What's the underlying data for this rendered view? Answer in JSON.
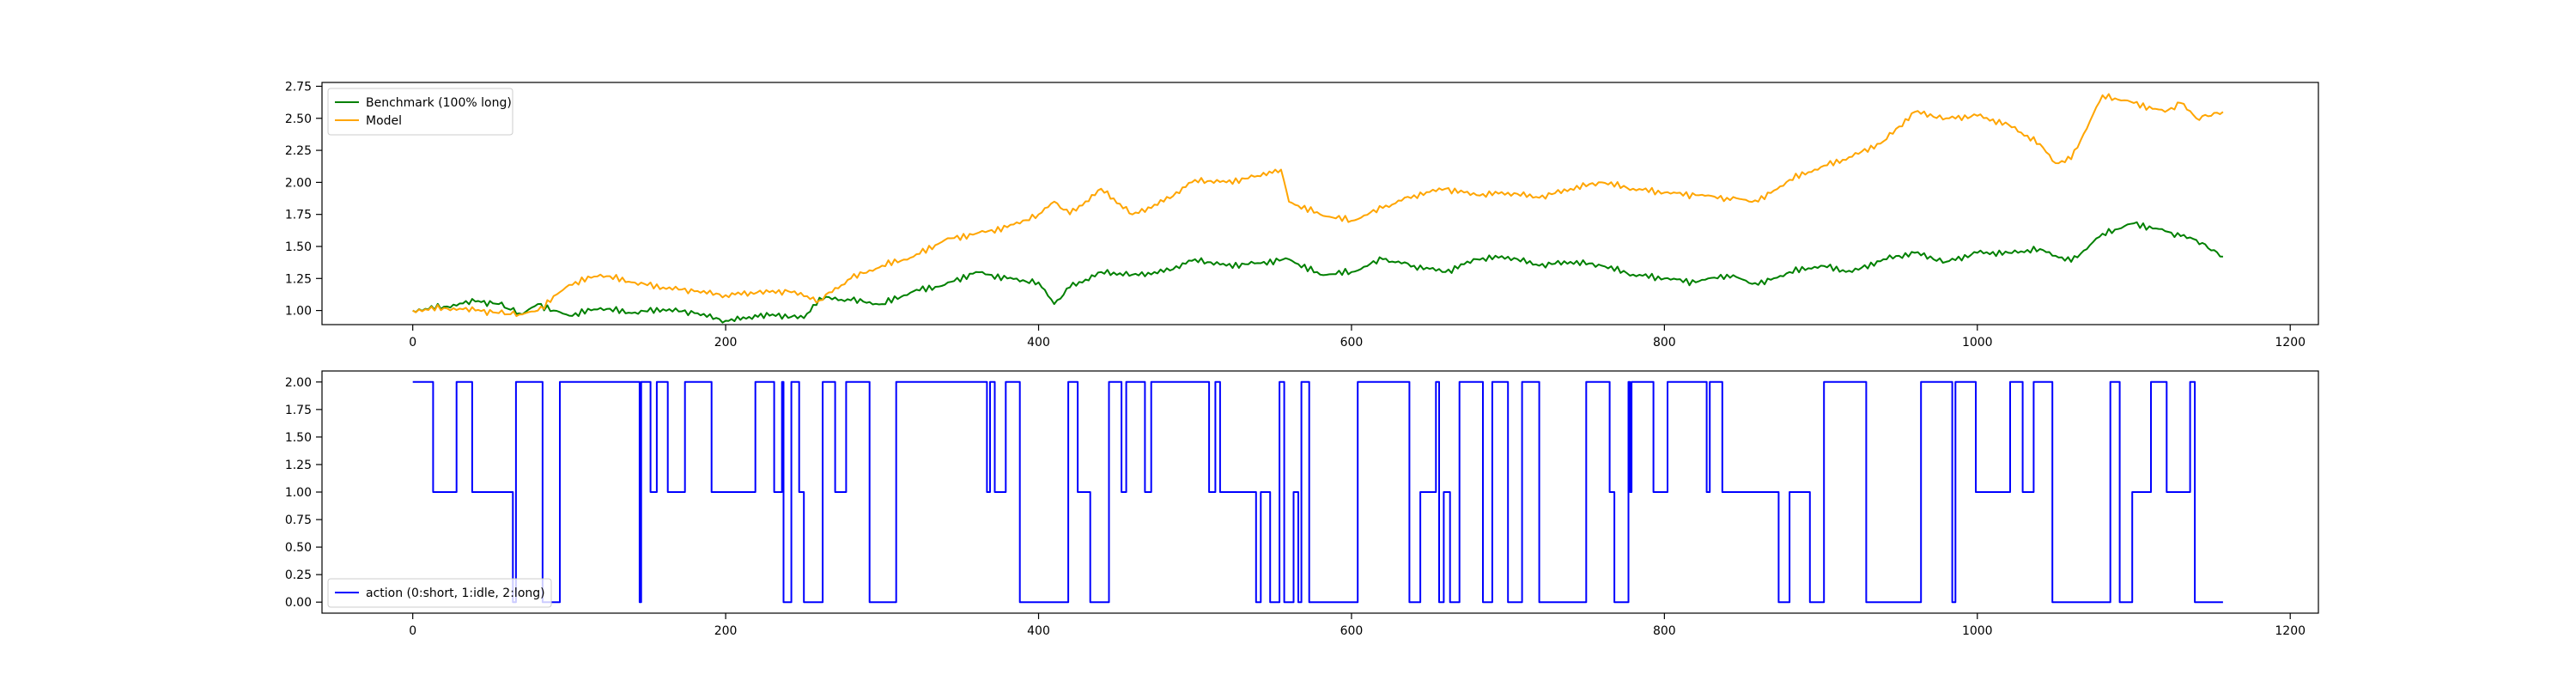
{
  "chart_data": [
    {
      "type": "line",
      "xlim": [
        -58,
        1218
      ],
      "ylim": [
        0.89,
        2.78
      ],
      "xticks": [
        0,
        200,
        400,
        600,
        800,
        1000,
        1200
      ],
      "xtick_labels": [
        "0",
        "200",
        "400",
        "600",
        "800",
        "1000",
        "1200"
      ],
      "yticks": [
        1.0,
        1.25,
        1.5,
        1.75,
        2.0,
        2.25,
        2.5,
        2.75
      ],
      "ytick_labels": [
        "1.00",
        "1.25",
        "1.50",
        "1.75",
        "2.00",
        "2.25",
        "2.50",
        "2.75"
      ],
      "grid": false,
      "legend_position": "upper left",
      "series": [
        {
          "name": "Benchmark (100% long)",
          "color": "#008000",
          "x": [
            0,
            20,
            40,
            55,
            70,
            80,
            90,
            100,
            120,
            140,
            160,
            180,
            200,
            215,
            230,
            250,
            260,
            280,
            300,
            320,
            340,
            360,
            380,
            400,
            410,
            420,
            440,
            460,
            480,
            500,
            520,
            540,
            560,
            580,
            600,
            620,
            640,
            660,
            680,
            700,
            720,
            740,
            760,
            780,
            800,
            820,
            840,
            860,
            880,
            900,
            920,
            940,
            960,
            980,
            1000,
            1020,
            1040,
            1060,
            1080,
            1100,
            1120,
            1130,
            1140,
            1157
          ],
          "y": [
            1.0,
            1.03,
            1.07,
            1.05,
            0.97,
            1.05,
            1.0,
            0.96,
            1.02,
            0.98,
            1.01,
            0.98,
            0.92,
            0.95,
            0.97,
            0.94,
            1.1,
            1.08,
            1.05,
            1.15,
            1.2,
            1.3,
            1.25,
            1.22,
            1.05,
            1.18,
            1.3,
            1.28,
            1.3,
            1.4,
            1.35,
            1.37,
            1.4,
            1.28,
            1.3,
            1.4,
            1.35,
            1.3,
            1.4,
            1.42,
            1.35,
            1.38,
            1.35,
            1.28,
            1.25,
            1.22,
            1.28,
            1.2,
            1.3,
            1.35,
            1.3,
            1.4,
            1.45,
            1.38,
            1.45,
            1.45,
            1.48,
            1.38,
            1.6,
            1.68,
            1.62,
            1.58,
            1.55,
            1.42
          ]
        },
        {
          "name": "Model",
          "color": "#ffa500",
          "x": [
            0,
            20,
            40,
            55,
            70,
            80,
            100,
            120,
            140,
            160,
            180,
            200,
            220,
            240,
            260,
            280,
            300,
            320,
            340,
            360,
            380,
            400,
            410,
            420,
            440,
            460,
            480,
            500,
            520,
            540,
            555,
            560,
            580,
            600,
            620,
            640,
            660,
            680,
            700,
            720,
            740,
            760,
            780,
            800,
            820,
            840,
            860,
            880,
            900,
            920,
            940,
            960,
            980,
            1000,
            1020,
            1040,
            1050,
            1060,
            1080,
            1100,
            1120,
            1130,
            1140,
            1157
          ],
          "y": [
            1.0,
            1.02,
            1.0,
            0.98,
            0.97,
            1.0,
            1.2,
            1.28,
            1.22,
            1.18,
            1.15,
            1.12,
            1.14,
            1.15,
            1.08,
            1.25,
            1.35,
            1.42,
            1.55,
            1.6,
            1.65,
            1.75,
            1.85,
            1.75,
            1.95,
            1.75,
            1.85,
            2.02,
            2.0,
            2.05,
            2.1,
            1.85,
            1.75,
            1.7,
            1.8,
            1.9,
            1.95,
            1.9,
            1.92,
            1.88,
            1.95,
            2.0,
            1.95,
            1.92,
            1.9,
            1.88,
            1.85,
            2.02,
            2.12,
            2.2,
            2.32,
            2.55,
            2.5,
            2.52,
            2.45,
            2.3,
            2.15,
            2.18,
            2.68,
            2.62,
            2.55,
            2.62,
            2.5,
            2.55
          ]
        }
      ]
    },
    {
      "type": "line",
      "xlim": [
        -58,
        1218
      ],
      "ylim": [
        -0.1,
        2.1
      ],
      "xticks": [
        0,
        200,
        400,
        600,
        800,
        1000,
        1200
      ],
      "xtick_labels": [
        "0",
        "200",
        "400",
        "600",
        "800",
        "1000",
        "1200"
      ],
      "yticks": [
        0.0,
        0.25,
        0.5,
        0.75,
        1.0,
        1.25,
        1.5,
        1.75,
        2.0
      ],
      "ytick_labels": [
        "0.00",
        "0.25",
        "0.50",
        "0.75",
        "1.00",
        "1.25",
        "1.50",
        "1.75",
        "2.00"
      ],
      "grid": false,
      "legend_position": "lower left",
      "series": [
        {
          "name": "action (0:short, 1:idle, 2:long)",
          "color": "#0000ff",
          "x": [
            0,
            9,
            13,
            28,
            36,
            38,
            45,
            64,
            66,
            68,
            83,
            94,
            145,
            146,
            152,
            156,
            163,
            174,
            191,
            219,
            231,
            236,
            237,
            242,
            247,
            250,
            262,
            270,
            277,
            292,
            309,
            367,
            369,
            372,
            379,
            388,
            419,
            425,
            433,
            445,
            453,
            456,
            468,
            472,
            473,
            476,
            506,
            509,
            513,
            514,
            516,
            539,
            542,
            548,
            554,
            557,
            563,
            566,
            568,
            573,
            604,
            637,
            644,
            654,
            656,
            659,
            663,
            669,
            684,
            690,
            700,
            709,
            720,
            750,
            765,
            768,
            777,
            778,
            779,
            793,
            802,
            827,
            829,
            837,
            873,
            880,
            893,
            902,
            929,
            964,
            984,
            986,
            999,
            1000,
            1006,
            1021,
            1029,
            1036,
            1037,
            1046,
            1048,
            1055,
            1085,
            1091,
            1099,
            1111,
            1121,
            1136,
            1139,
            1140
          ],
          "y": [
            2,
            2,
            1,
            2,
            2,
            1,
            1,
            0,
            2,
            2,
            0,
            2,
            0,
            2,
            1,
            2,
            1,
            2,
            1,
            2,
            1,
            2,
            0,
            2,
            1,
            0,
            2,
            1,
            2,
            0,
            2,
            1,
            2,
            1,
            2,
            0,
            2,
            1,
            0,
            2,
            1,
            2,
            1,
            2,
            2,
            2,
            2,
            1,
            2,
            2,
            1,
            0,
            1,
            0,
            2,
            0,
            1,
            0,
            2,
            0,
            2,
            0,
            1,
            2,
            0,
            1,
            0,
            2,
            0,
            2,
            0,
            2,
            0,
            2,
            1,
            0,
            2,
            1,
            2,
            1,
            2,
            1,
            2,
            1,
            0,
            1,
            0,
            2,
            0,
            2,
            0,
            2,
            1,
            1,
            1,
            2,
            1,
            2,
            2,
            2,
            0,
            0,
            2,
            0,
            1,
            2,
            1,
            2,
            0,
            0
          ],
          "x_end": 1157,
          "step": "post"
        }
      ]
    }
  ]
}
